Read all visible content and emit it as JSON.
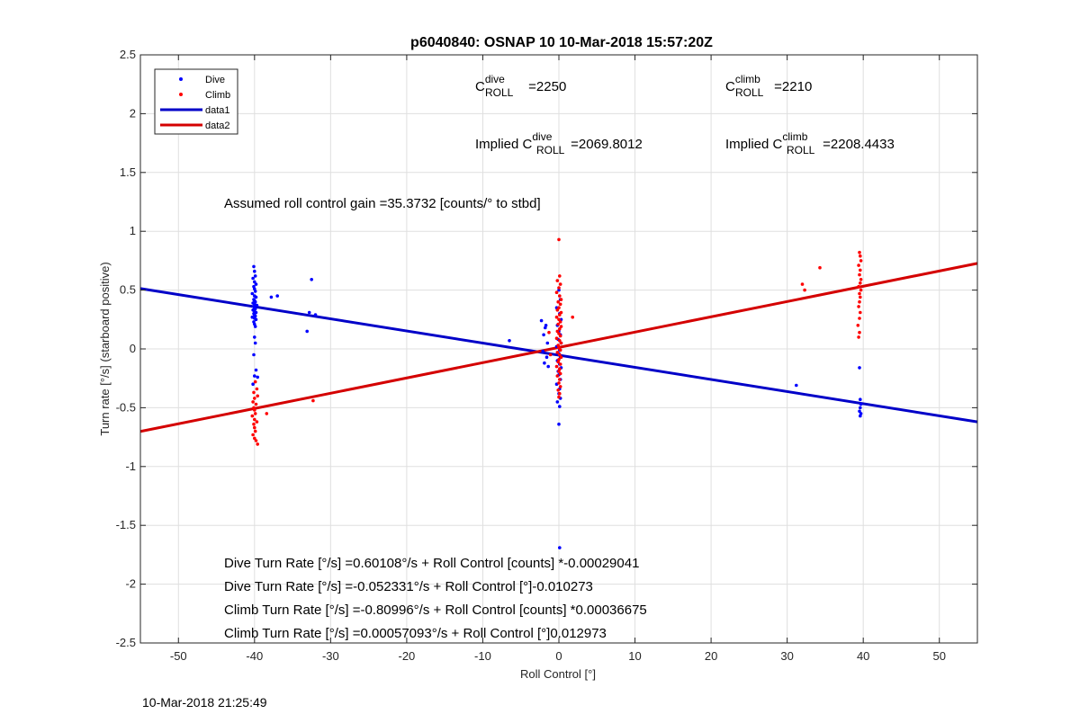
{
  "chart_data": {
    "type": "scatter",
    "title": "p6040840: OSNAP 10 10-Mar-2018 15:57:20Z",
    "xlabel": "Roll Control [°]",
    "ylabel": "Turn rate [°/s] (starboard positive)",
    "xlim": [
      -55,
      55
    ],
    "ylim": [
      -2.5,
      2.5
    ],
    "x_ticks": [
      -50,
      -40,
      -30,
      -20,
      -10,
      0,
      10,
      20,
      30,
      40,
      50
    ],
    "y_ticks": [
      -2.5,
      -2,
      -1.5,
      -1,
      -0.5,
      0,
      0.5,
      1,
      1.5,
      2,
      2.5
    ],
    "grid": true,
    "legend_position": "top-left",
    "legend": [
      "Dive",
      "Climb",
      "data1",
      "data2"
    ],
    "series": [
      {
        "name": "Dive",
        "kind": "points",
        "color": "#0000ff",
        "points": [
          [
            -40.1,
            0.7
          ],
          [
            -40.0,
            0.66
          ],
          [
            -39.9,
            0.62
          ],
          [
            -40.2,
            0.6
          ],
          [
            -40.0,
            0.57
          ],
          [
            -39.8,
            0.55
          ],
          [
            -40.1,
            0.53
          ],
          [
            -40.0,
            0.51
          ],
          [
            -39.9,
            0.49
          ],
          [
            -40.3,
            0.47
          ],
          [
            -40.0,
            0.45
          ],
          [
            -39.8,
            0.44
          ],
          [
            -40.1,
            0.42
          ],
          [
            -40.0,
            0.41
          ],
          [
            -39.9,
            0.4
          ],
          [
            -40.2,
            0.39
          ],
          [
            -40.0,
            0.38
          ],
          [
            -39.7,
            0.37
          ],
          [
            -40.1,
            0.36
          ],
          [
            -40.0,
            0.35
          ],
          [
            -39.9,
            0.34
          ],
          [
            -40.2,
            0.33
          ],
          [
            -40.0,
            0.32
          ],
          [
            -39.8,
            0.31
          ],
          [
            -40.1,
            0.3
          ],
          [
            -40.0,
            0.29
          ],
          [
            -39.9,
            0.28
          ],
          [
            -40.3,
            0.27
          ],
          [
            -40.0,
            0.26
          ],
          [
            -39.8,
            0.25
          ],
          [
            -40.1,
            0.23
          ],
          [
            -40.0,
            0.21
          ],
          [
            -39.9,
            0.19
          ],
          [
            -40.0,
            0.1
          ],
          [
            -39.9,
            0.05
          ],
          [
            -40.1,
            -0.05
          ],
          [
            -39.8,
            -0.18
          ],
          [
            -40.0,
            -0.23
          ],
          [
            -39.6,
            -0.24
          ],
          [
            -40.2,
            -0.3
          ],
          [
            -37.0,
            0.45
          ],
          [
            -37.8,
            0.44
          ],
          [
            -32.5,
            0.59
          ],
          [
            -32.8,
            0.31
          ],
          [
            -32.0,
            0.29
          ],
          [
            -33.1,
            0.15
          ],
          [
            -6.5,
            0.07
          ],
          [
            -2.3,
            0.24
          ],
          [
            -1.8,
            0.18
          ],
          [
            -2.0,
            0.12
          ],
          [
            -1.5,
            0.05
          ],
          [
            -2.1,
            -0.02
          ],
          [
            -1.6,
            -0.07
          ],
          [
            -1.9,
            -0.12
          ],
          [
            -1.4,
            -0.15
          ],
          [
            -1.7,
            0.2
          ],
          [
            0.0,
            0.5
          ],
          [
            0.2,
            0.42
          ],
          [
            -0.3,
            0.35
          ],
          [
            0.1,
            0.3
          ],
          [
            0.3,
            0.25
          ],
          [
            -0.2,
            0.2
          ],
          [
            0.0,
            0.15
          ],
          [
            0.2,
            0.12
          ],
          [
            -0.1,
            0.08
          ],
          [
            0.3,
            0.05
          ],
          [
            -0.3,
            0.02
          ],
          [
            0.1,
            -0.01
          ],
          [
            0.0,
            -0.04
          ],
          [
            0.2,
            -0.07
          ],
          [
            -0.2,
            -0.1
          ],
          [
            0.1,
            -0.13
          ],
          [
            0.3,
            -0.16
          ],
          [
            -0.1,
            -0.19
          ],
          [
            0.0,
            -0.22
          ],
          [
            0.2,
            -0.26
          ],
          [
            -0.3,
            -0.3
          ],
          [
            0.1,
            -0.34
          ],
          [
            0.0,
            -0.38
          ],
          [
            0.2,
            -0.42
          ],
          [
            -0.2,
            -0.45
          ],
          [
            0.1,
            -0.49
          ],
          [
            0.0,
            -0.64
          ],
          [
            0.1,
            -1.69
          ],
          [
            31.2,
            -0.31
          ],
          [
            39.5,
            -0.16
          ],
          [
            39.6,
            -0.43
          ],
          [
            39.7,
            -0.47
          ],
          [
            39.6,
            -0.5
          ],
          [
            39.5,
            -0.53
          ],
          [
            39.7,
            -0.55
          ],
          [
            39.6,
            -0.57
          ]
        ]
      },
      {
        "name": "Climb",
        "kind": "points",
        "color": "#ff0000",
        "points": [
          [
            -40.0,
            -0.42
          ],
          [
            -40.2,
            -0.45
          ],
          [
            -39.8,
            -0.47
          ],
          [
            -40.1,
            -0.5
          ],
          [
            -40.0,
            -0.52
          ],
          [
            -39.9,
            -0.55
          ],
          [
            -40.3,
            -0.57
          ],
          [
            -40.0,
            -0.6
          ],
          [
            -39.7,
            -0.62
          ],
          [
            -40.1,
            -0.64
          ],
          [
            -40.0,
            -0.67
          ],
          [
            -39.9,
            -0.7
          ],
          [
            -40.2,
            -0.73
          ],
          [
            -40.0,
            -0.76
          ],
          [
            -39.8,
            -0.78
          ],
          [
            -39.6,
            -0.81
          ],
          [
            -39.9,
            -0.28
          ],
          [
            -39.7,
            -0.34
          ],
          [
            -40.1,
            -0.37
          ],
          [
            -39.6,
            -0.4
          ],
          [
            -38.4,
            -0.55
          ],
          [
            -32.3,
            -0.44
          ],
          [
            0.0,
            0.93
          ],
          [
            0.1,
            0.62
          ],
          [
            -0.2,
            0.58
          ],
          [
            0.2,
            0.55
          ],
          [
            0.0,
            0.52
          ],
          [
            -0.3,
            0.48
          ],
          [
            0.1,
            0.45
          ],
          [
            0.3,
            0.42
          ],
          [
            -0.1,
            0.4
          ],
          [
            0.2,
            0.38
          ],
          [
            0.0,
            0.35
          ],
          [
            -0.2,
            0.33
          ],
          [
            0.3,
            0.31
          ],
          [
            0.1,
            0.29
          ],
          [
            -0.3,
            0.27
          ],
          [
            0.0,
            0.25
          ],
          [
            0.2,
            0.23
          ],
          [
            -0.1,
            0.21
          ],
          [
            0.3,
            0.19
          ],
          [
            0.1,
            0.17
          ],
          [
            -0.2,
            0.15
          ],
          [
            0.0,
            0.13
          ],
          [
            0.2,
            0.11
          ],
          [
            -0.3,
            0.09
          ],
          [
            0.1,
            0.07
          ],
          [
            0.3,
            0.05
          ],
          [
            -0.1,
            0.03
          ],
          [
            0.0,
            0.01
          ],
          [
            0.2,
            -0.01
          ],
          [
            -0.2,
            -0.03
          ],
          [
            0.1,
            -0.05
          ],
          [
            0.3,
            -0.07
          ],
          [
            0.0,
            -0.09
          ],
          [
            -0.1,
            -0.11
          ],
          [
            0.2,
            -0.13
          ],
          [
            -0.3,
            -0.15
          ],
          [
            0.1,
            -0.17
          ],
          [
            0.0,
            -0.19
          ],
          [
            0.2,
            -0.21
          ],
          [
            -0.2,
            -0.23
          ],
          [
            0.1,
            -0.26
          ],
          [
            0.0,
            -0.29
          ],
          [
            0.2,
            -0.32
          ],
          [
            -0.1,
            -0.35
          ],
          [
            0.1,
            -0.38
          ],
          [
            0.0,
            -0.41
          ],
          [
            1.8,
            0.27
          ],
          [
            -1.3,
            0.14
          ],
          [
            -1.1,
            -0.05
          ],
          [
            32.0,
            0.55
          ],
          [
            32.3,
            0.5
          ],
          [
            34.3,
            0.69
          ],
          [
            39.5,
            0.82
          ],
          [
            39.6,
            0.79
          ],
          [
            39.7,
            0.75
          ],
          [
            39.4,
            0.71
          ],
          [
            39.6,
            0.67
          ],
          [
            39.5,
            0.63
          ],
          [
            39.7,
            0.59
          ],
          [
            39.6,
            0.56
          ],
          [
            39.4,
            0.53
          ],
          [
            39.7,
            0.5
          ],
          [
            39.5,
            0.47
          ],
          [
            39.6,
            0.44
          ],
          [
            39.5,
            0.4
          ],
          [
            39.4,
            0.36
          ],
          [
            39.6,
            0.31
          ],
          [
            39.5,
            0.26
          ],
          [
            39.3,
            0.2
          ],
          [
            39.5,
            0.14
          ],
          [
            39.4,
            0.1
          ]
        ]
      },
      {
        "name": "data1",
        "kind": "line",
        "color": "#0000c8",
        "x": [
          -55,
          55
        ],
        "y": [
          0.5135,
          -0.6202
        ]
      },
      {
        "name": "data2",
        "kind": "line",
        "color": "#d40000",
        "x": [
          -55,
          55
        ],
        "y": [
          -0.7016,
          0.7275
        ]
      }
    ],
    "annotations": {
      "c_roll_dive": {
        "base": "C",
        "sup": "dive",
        "sub": "ROLL",
        "rest": " =2250"
      },
      "c_roll_climb": {
        "base": "C",
        "sup": "climb",
        "sub": "ROLL",
        "rest": " =2210"
      },
      "implied_dive": {
        "prefix": "Implied C",
        "sup": "dive",
        "sub": "ROLL",
        "rest": " =2069.8012"
      },
      "implied_climb": {
        "prefix": "Implied C",
        "sup": "climb",
        "sub": "ROLL",
        "rest": " =2208.4433"
      },
      "gain": "Assumed roll control gain =35.3732 [counts/° to stbd]",
      "fit_lines": [
        "Dive Turn Rate [°/s] =0.60108°/s + Roll Control [counts] *-0.00029041",
        "Dive Turn Rate [°/s] =-0.052331°/s + Roll Control [°]-0.010273",
        "Climb Turn Rate [°/s] =-0.80996°/s + Roll Control [counts] *0.00036675",
        "Climb Turn Rate [°/s] =0.00057093°/s + Roll Control [°]0.012973"
      ]
    }
  },
  "footer_timestamp": "10-Mar-2018 21:25:49"
}
